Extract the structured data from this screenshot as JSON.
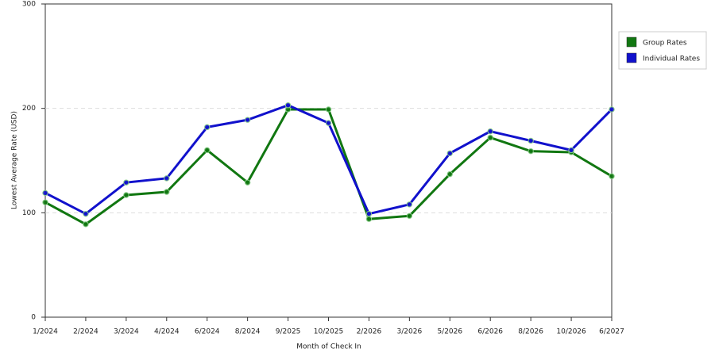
{
  "chart_data": {
    "type": "line",
    "x_label": "Month of Check In",
    "y_label": "Lowest Average Rate (USD)",
    "categories": [
      "1/2024",
      "2/2024",
      "3/2024",
      "4/2024",
      "6/2024",
      "8/2024",
      "9/2025",
      "10/2025",
      "2/2026",
      "3/2026",
      "5/2026",
      "6/2026",
      "8/2026",
      "10/2026",
      "6/2027"
    ],
    "series": [
      {
        "name": "Group Rates",
        "color": "#117711",
        "values": [
          110,
          89,
          117,
          120,
          160,
          129,
          199,
          199,
          94,
          97,
          137,
          172,
          159,
          158,
          135
        ]
      },
      {
        "name": "Individual Rates",
        "color": "#1111cc",
        "values": [
          119,
          99,
          129,
          133,
          182,
          189,
          203,
          186,
          99,
          108,
          157,
          178,
          169,
          160,
          199
        ]
      }
    ],
    "ylim": [
      0,
      300
    ],
    "yticks": [
      0,
      100,
      200,
      300
    ],
    "grid": true,
    "legend": "right"
  }
}
